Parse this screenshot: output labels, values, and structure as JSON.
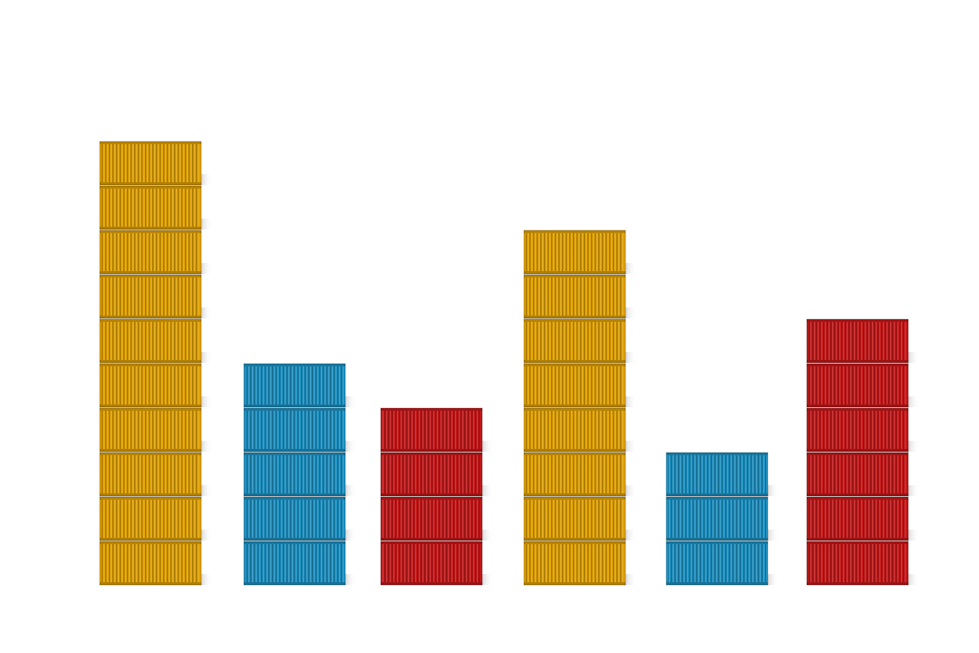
{
  "chart_data": {
    "type": "bar",
    "values": [
      10,
      5,
      4,
      8,
      3,
      6
    ],
    "colors": [
      "#e3a300",
      "#1e93c4",
      "#c8191a",
      "#e3a300",
      "#1e93c4",
      "#c8191a"
    ]
  }
}
